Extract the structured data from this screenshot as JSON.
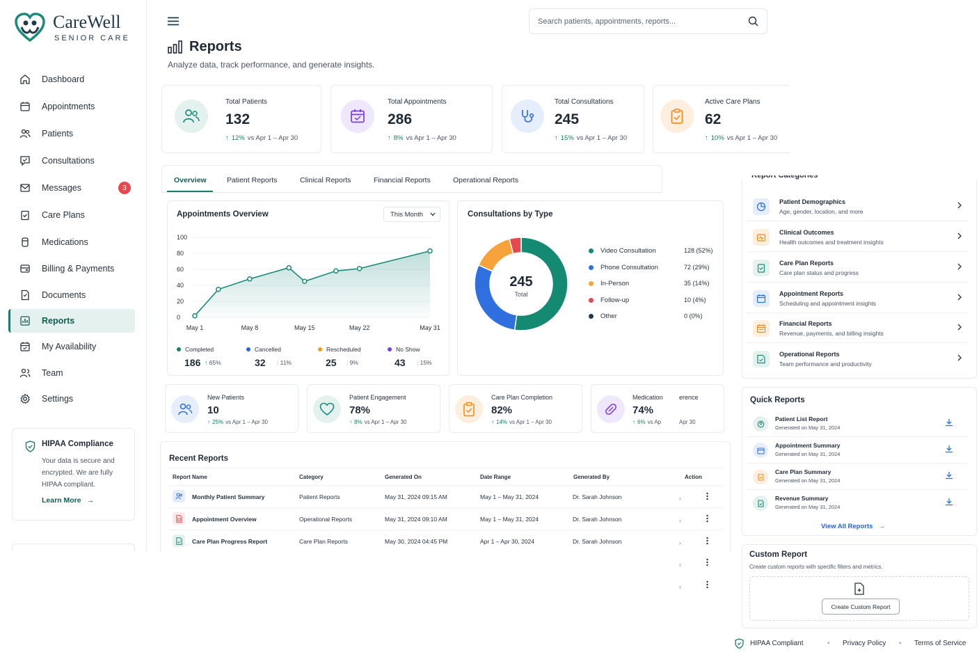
{
  "brand": {
    "name": "CareWell",
    "tagline": "SENIOR CARE"
  },
  "sidebar": {
    "items": [
      {
        "label": "Dashboard",
        "icon": "home-icon"
      },
      {
        "label": "Appointments",
        "icon": "calendar-icon"
      },
      {
        "label": "Patients",
        "icon": "users-icon"
      },
      {
        "label": "Consultations",
        "icon": "consultation-icon"
      },
      {
        "label": "Messages",
        "icon": "mail-icon",
        "badge": "3"
      },
      {
        "label": "Care Plans",
        "icon": "clipboard-icon"
      },
      {
        "label": "Medications",
        "icon": "pill-icon"
      },
      {
        "label": "Billing & Payments",
        "icon": "wallet-icon"
      },
      {
        "label": "Documents",
        "icon": "document-icon"
      },
      {
        "label": "Reports",
        "icon": "reports-icon",
        "active": true
      },
      {
        "label": "My Availability",
        "icon": "calendar-check-icon"
      },
      {
        "label": "Team",
        "icon": "team-icon"
      },
      {
        "label": "Settings",
        "icon": "gear-icon"
      }
    ],
    "hipaa": {
      "title": "HIPAA Compliance",
      "desc1": "Your data is secure and",
      "desc2": "encrypted. We are fully",
      "desc3": "HIPAA compliant.",
      "link": "Learn More"
    }
  },
  "header": {
    "search_placeholder": "Search patients, appointments, reports...",
    "title": "Reports",
    "subtitle": "Analyze data, track performance, and generate insights."
  },
  "stats": [
    {
      "label": "Total Patients",
      "value": "132",
      "pct": "12%",
      "range": "vs Apr 1 – Apr 30"
    },
    {
      "label": "Total Appointments",
      "value": "286",
      "pct": "8%",
      "range": "vs Apr 1 – Apr 30"
    },
    {
      "label": "Total Consultations",
      "value": "245",
      "pct": "15%",
      "range": "vs Apr 1 – Apr 30"
    },
    {
      "label": "Active Care Plans",
      "value": "62",
      "pct": "10%",
      "range": "vs Apr 1 – Apr 30"
    }
  ],
  "tabs": [
    "Overview",
    "Patient Reports",
    "Clinical Reports",
    "Financial Reports",
    "Operational Reports"
  ],
  "appointments_overview": {
    "title": "Appointments Overview",
    "period": "This Month",
    "summary": [
      {
        "label": "Completed",
        "value": "186",
        "pct": "65%",
        "color": "#15805f",
        "arrow": "↑"
      },
      {
        "label": "Cancelled",
        "value": "32",
        "pct": "11%",
        "color": "#2563eb"
      },
      {
        "label": "Rescheduled",
        "value": "25",
        "pct": "9%",
        "color": "#f59e0b"
      },
      {
        "label": "No Show",
        "value": "43",
        "pct": "15%",
        "color": "#7c3aed"
      }
    ]
  },
  "chart_data": [
    {
      "type": "area",
      "title": "Appointments Overview",
      "x": [
        1,
        4,
        8,
        13,
        15,
        19,
        22,
        31
      ],
      "y": [
        2,
        35,
        48,
        62,
        45,
        58,
        61,
        83
      ],
      "xticks": [
        "May 1",
        "May 8",
        "May 15",
        "May 22",
        "May 31"
      ],
      "xtick_positions": [
        1,
        8,
        15,
        22,
        31
      ],
      "yticks": [
        "0",
        "20",
        "40",
        "60",
        "80",
        "100"
      ],
      "ylim": [
        0,
        100
      ],
      "xlim": [
        1,
        31
      ],
      "color": "#1b8a7b"
    },
    {
      "type": "pie",
      "title": "Consultations by Type",
      "center_value": "245",
      "center_label": "Total",
      "slices": [
        {
          "label": "Video Consultation",
          "value": 128,
          "display": "128 (52%)",
          "color": "#158a72"
        },
        {
          "label": "Phone Consultation",
          "value": 72,
          "display": "72 (29%)",
          "color": "#2f6fe0"
        },
        {
          "label": "In-Person",
          "value": 35,
          "display": "35 (14%)",
          "color": "#f5a33a"
        },
        {
          "label": "Follow-up",
          "value": 10,
          "display": "10 (4%)",
          "color": "#e5484d"
        },
        {
          "label": "Other",
          "value": 0,
          "display": "0 (0%)",
          "color": "#1f3a4d"
        }
      ]
    }
  ],
  "kpis": [
    {
      "label": "New Patients",
      "value": "10",
      "pct": "25%",
      "range": "vs Apr 1 – Apr 30"
    },
    {
      "label": "Patient Engagement",
      "value": "78%",
      "pct": "8%",
      "range": "vs Apr 1 – Apr 30"
    },
    {
      "label": "Care Plan Completion",
      "value": "82%",
      "pct": "14%",
      "range": "vs Apr 1 – Apr 30"
    },
    {
      "label": "Medication",
      "value": "74%",
      "pct": "6%",
      "range": "vs Ap",
      "label_tail": "erence",
      "range_tail": "Apr 30"
    }
  ],
  "recent_reports": {
    "title": "Recent Reports",
    "columns": [
      "Report Name",
      "Category",
      "Generated On",
      "Date Range",
      "Generated By",
      "Action"
    ],
    "rows": [
      {
        "name": "Monthly Patient Summary",
        "category": "Patient Reports",
        "generated": "May 31, 2024 09:15 AM",
        "range": "May 1 – May 31, 2024",
        "by": "Dr. Sarah Johnson"
      },
      {
        "name": "Appointment Overview",
        "category": "Operational Reports",
        "generated": "May 31, 2024 09:10 AM",
        "range": "May 1 – May 31, 2024",
        "by": "Dr. Sarah Johnson"
      },
      {
        "name": "Care Plan Progress Report",
        "category": "Care Plan Reports",
        "generated": "May 30, 2024 04:45 PM",
        "range": "Apr 1 – Apr 30, 2024",
        "by": "Dr. Sarah Johnson"
      }
    ]
  },
  "report_categories": {
    "items": [
      {
        "title": "Patient Demographics",
        "desc": "Age, gender, location, and more"
      },
      {
        "title": "Clinical Outcomes",
        "desc": "Health outcomes and treatment insights"
      },
      {
        "title": "Care Plan Reports",
        "desc": "Care plan status and progress"
      },
      {
        "title": "Appointment Reports",
        "desc": "Scheduling and appointment insights"
      },
      {
        "title": "Financial Reports",
        "desc": "Revenue, payments, and billing insights"
      },
      {
        "title": "Operational Reports",
        "desc": "Team performance and productivity"
      }
    ]
  },
  "quick_reports": {
    "title": "Quick Reports",
    "items": [
      {
        "title": "Patient List Report",
        "desc": "Generated on May 31, 2024"
      },
      {
        "title": "Appointment Summary",
        "desc": "Generated on May 31, 2024"
      },
      {
        "title": "Care Plan Summary",
        "desc": "Generated on May 31, 2024"
      },
      {
        "title": "Revenue Summary",
        "desc": "Generated on May 31, 2024"
      }
    ],
    "view_all": "View All Reports"
  },
  "custom_report": {
    "title": "Custom Report",
    "desc": "Create custom reports with specific filters and metrics.",
    "button": "Create Custom Report"
  },
  "footer": {
    "compliant": "HIPAA Compliant",
    "privacy": "Privacy Policy",
    "terms": "Terms of Service"
  }
}
